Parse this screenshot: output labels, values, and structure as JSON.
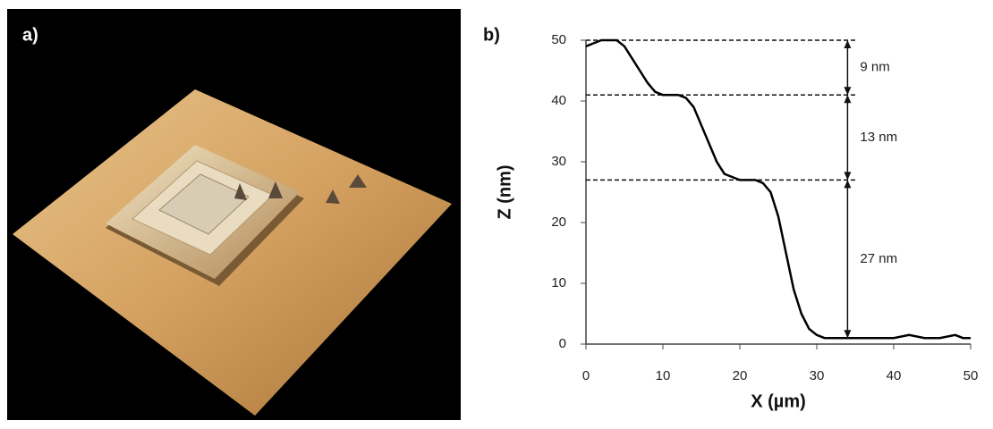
{
  "panel_a": {
    "label": "a)"
  },
  "chart_data": {
    "type": "line",
    "title": "b)",
    "x_label": "X (µm)",
    "y_label": "Z (nm)",
    "x": [
      0,
      1,
      2,
      3,
      4,
      5,
      6,
      7,
      8,
      9,
      10,
      11,
      12,
      13,
      14,
      15,
      16,
      17,
      18,
      19,
      20,
      21,
      22,
      23,
      24,
      25,
      26,
      27,
      28,
      29,
      30,
      31,
      32,
      33,
      34,
      35,
      36,
      38,
      40,
      42,
      44,
      46,
      48,
      49,
      50
    ],
    "values": [
      49,
      49.5,
      50,
      50,
      50,
      49,
      47,
      45,
      43,
      41.5,
      41,
      41,
      41,
      40.5,
      39,
      36,
      33,
      30,
      28,
      27.5,
      27,
      27,
      27,
      26.5,
      25,
      21,
      15,
      9,
      5,
      2.5,
      1.5,
      1,
      1,
      1,
      1,
      1,
      1,
      1,
      1,
      1.5,
      1,
      1,
      1.5,
      1,
      1
    ],
    "color": "#000000",
    "xlim": [
      0,
      50
    ],
    "xticks": [
      0,
      10,
      20,
      30,
      40,
      50
    ],
    "ylim": [
      0,
      50
    ],
    "yticks": [
      0,
      10,
      20,
      30,
      40,
      50
    ],
    "dashed_lines": [
      50,
      41,
      27
    ],
    "arrow_x": 34,
    "annotations": [
      {
        "text": "9 nm",
        "from": 50,
        "to": 41
      },
      {
        "text": "13 nm",
        "from": 41,
        "to": 27
      },
      {
        "text": "27 nm",
        "from": 27,
        "to": 1
      }
    ]
  }
}
